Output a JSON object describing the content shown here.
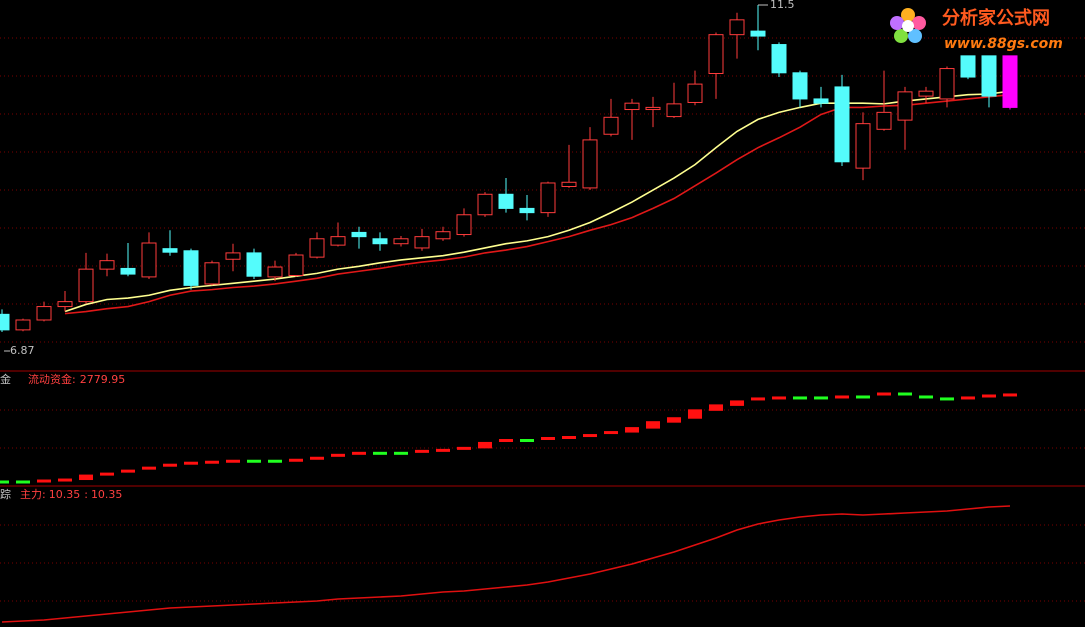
{
  "chart_data": [
    {
      "type": "candlestick",
      "open": [
        7.12,
        6.9,
        7.04,
        7.23,
        7.3,
        7.76,
        7.77,
        7.65,
        8.05,
        8.02,
        7.55,
        7.9,
        7.99,
        7.65,
        7.67,
        7.93,
        8.1,
        8.28,
        8.19,
        8.12,
        8.06,
        8.19,
        8.25,
        8.53,
        8.82,
        8.62,
        8.56,
        8.93,
        8.91,
        9.67,
        10.02,
        10.02,
        9.92,
        10.12,
        10.53,
        11.08,
        11.13,
        10.94,
        10.54,
        10.17,
        10.34,
        9.19,
        9.74,
        9.87,
        10.21,
        10.17,
        10.78,
        10.78,
        10.78
      ],
      "high": [
        7.19,
        7.06,
        7.3,
        7.45,
        7.99,
        7.98,
        8.13,
        8.28,
        8.31,
        8.05,
        7.88,
        8.12,
        8.05,
        7.88,
        7.99,
        8.28,
        8.42,
        8.36,
        8.28,
        8.23,
        8.33,
        8.36,
        8.62,
        8.85,
        9.05,
        8.81,
        9.0,
        9.52,
        9.77,
        10.17,
        10.17,
        10.2,
        10.4,
        10.57,
        11.11,
        11.39,
        11.5,
        10.97,
        10.57,
        10.34,
        10.51,
        9.98,
        10.57,
        10.34,
        10.34,
        10.63,
        10.78,
        10.78,
        10.78
      ],
      "low": [
        6.87,
        6.88,
        7.02,
        7.16,
        7.27,
        7.66,
        7.66,
        7.62,
        7.95,
        7.47,
        7.53,
        7.73,
        7.62,
        7.59,
        7.65,
        7.91,
        8.08,
        8.05,
        8.02,
        8.08,
        8.02,
        8.16,
        8.22,
        8.5,
        8.56,
        8.45,
        8.5,
        8.91,
        8.88,
        9.64,
        9.59,
        9.77,
        9.9,
        10.08,
        10.17,
        10.74,
        10.86,
        10.48,
        10.05,
        10.05,
        9.22,
        9.02,
        9.72,
        9.45,
        10.11,
        10.05,
        10.45,
        10.05,
        10.02
      ],
      "close": [
        6.9,
        7.04,
        7.23,
        7.3,
        7.76,
        7.88,
        7.69,
        8.13,
        8.0,
        7.53,
        7.85,
        7.99,
        7.66,
        7.79,
        7.96,
        8.19,
        8.22,
        8.22,
        8.12,
        8.19,
        8.22,
        8.29,
        8.53,
        8.82,
        8.62,
        8.56,
        8.98,
        8.99,
        9.59,
        9.91,
        10.11,
        10.05,
        10.1,
        10.38,
        11.08,
        11.29,
        11.06,
        10.54,
        10.17,
        10.11,
        9.28,
        9.82,
        9.98,
        10.27,
        10.28,
        10.6,
        10.48,
        10.21,
        10.05
      ],
      "up_color": "#ff3c3c",
      "down_color": "#54fcfc",
      "last_color": "#ff00ff",
      "series": [
        {
          "color": "#ffff90",
          "values": [
            null,
            null,
            null,
            7.16,
            7.26,
            7.33,
            7.35,
            7.39,
            7.46,
            7.5,
            7.53,
            7.56,
            7.59,
            7.62,
            7.66,
            7.7,
            7.76,
            7.8,
            7.85,
            7.89,
            7.92,
            7.95,
            8.0,
            8.06,
            8.12,
            8.16,
            8.22,
            8.31,
            8.42,
            8.56,
            8.71,
            8.88,
            9.05,
            9.24,
            9.48,
            9.71,
            9.88,
            9.98,
            10.05,
            10.11,
            10.11,
            10.11,
            10.1,
            10.14,
            10.17,
            10.2,
            10.23,
            10.24,
            10.28
          ]
        },
        {
          "color": "#e01818",
          "values": [
            null,
            null,
            null,
            7.13,
            7.16,
            7.2,
            7.23,
            7.3,
            7.39,
            7.45,
            7.47,
            7.5,
            7.52,
            7.55,
            7.59,
            7.63,
            7.69,
            7.73,
            7.77,
            7.82,
            7.86,
            7.89,
            7.93,
            7.99,
            8.03,
            8.08,
            8.15,
            8.22,
            8.31,
            8.39,
            8.49,
            8.62,
            8.76,
            8.94,
            9.12,
            9.31,
            9.48,
            9.62,
            9.77,
            9.95,
            10.05,
            10.05,
            10.07,
            10.08,
            10.11,
            10.14,
            10.17,
            10.2,
            10.23
          ]
        }
      ]
    },
    {
      "type": "step",
      "title": "金",
      "name": "流动资金:",
      "up_color": "#ff1010",
      "down_color": "#20ff20",
      "values": [
        121,
        121,
        151,
        181,
        302,
        362,
        453,
        544,
        634,
        695,
        725,
        755,
        755,
        755,
        785,
        846,
        936,
        997,
        997,
        997,
        1057,
        1087,
        1148,
        1299,
        1389,
        1389,
        1450,
        1480,
        1540,
        1631,
        1752,
        1933,
        2054,
        2295,
        2446,
        2567,
        2658,
        2688,
        2688,
        2688,
        2718,
        2718,
        2809,
        2809,
        2718,
        2658,
        2688,
        2748,
        2779.95
      ]
    },
    {
      "type": "line",
      "title": "踪",
      "name": "主力:",
      "separator": ":",
      "color": "#e01010",
      "values": [
        6.87,
        6.9,
        6.93,
        6.99,
        7.05,
        7.11,
        7.17,
        7.23,
        7.29,
        7.32,
        7.35,
        7.38,
        7.41,
        7.44,
        7.47,
        7.5,
        7.56,
        7.59,
        7.62,
        7.65,
        7.71,
        7.77,
        7.8,
        7.86,
        7.92,
        7.98,
        8.07,
        8.19,
        8.31,
        8.46,
        8.61,
        8.79,
        8.97,
        9.18,
        9.39,
        9.63,
        9.81,
        9.93,
        10.02,
        10.08,
        10.11,
        10.08,
        10.11,
        10.14,
        10.17,
        10.2,
        10.26,
        10.32,
        10.35
      ]
    }
  ],
  "watermark": {
    "name": "分析家公式网",
    "url": "www.88gs.com"
  }
}
